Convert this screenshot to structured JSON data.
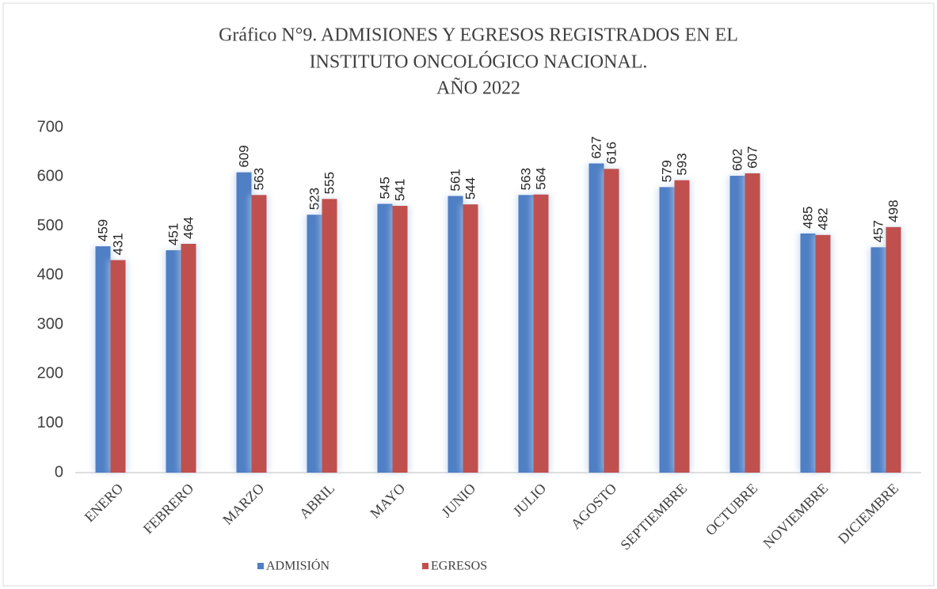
{
  "chart_data": {
    "type": "bar",
    "title": [
      "Gráfico N°9.  ADMISIONES Y EGRESOS REGISTRADOS  EN EL",
      "INSTITUTO ONCOLÓGICO NACIONAL.",
      "AÑO 2022"
    ],
    "categories": [
      "ENERO",
      "FEBRERO",
      "MARZO",
      "ABRIL",
      "MAYO",
      "JUNIO",
      "JULIO",
      "AGOSTO",
      "SEPTIEMBRE",
      "OCTUBRE",
      "NOVIEMBRE",
      "DICIEMBRE"
    ],
    "series": [
      {
        "name": "ADMISIÓN",
        "color": "#4f7fc4",
        "values": [
          459,
          451,
          609,
          523,
          545,
          561,
          563,
          627,
          579,
          602,
          485,
          457
        ]
      },
      {
        "name": "EGRESOS",
        "color": "#c0504d",
        "values": [
          431,
          464,
          563,
          555,
          541,
          544,
          564,
          616,
          593,
          607,
          482,
          498
        ]
      }
    ],
    "ylim": [
      0,
      700
    ],
    "yticks": [
      0,
      100,
      200,
      300,
      400,
      500,
      600,
      700
    ],
    "grid": false,
    "legend": "bottom"
  }
}
